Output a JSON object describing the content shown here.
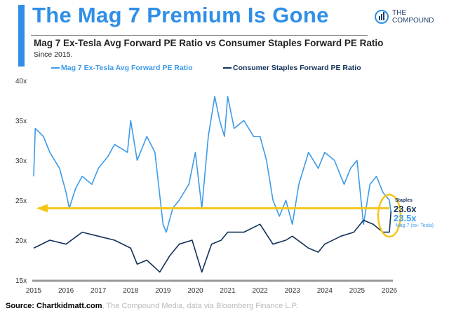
{
  "header": {
    "title": "The Mag 7 Premium Is Gone",
    "subtitle": "Mag 7 Ex-Tesla Avg Forward PE Ratio vs Consumer Staples Forward PE Ratio",
    "since": "Since 2015.",
    "logo_line1": "THE",
    "logo_line2": "COMPOUND"
  },
  "footer": {
    "source_bold": "Source: Chartkidmatt.com",
    "source_rest": ", The Compound Media, data via Bloomberg Finance L.P."
  },
  "annotations": {
    "staples_label": "Staples",
    "staples_value": "23.6x",
    "mag7_value": "23.5x",
    "mag7_label": "Mag 7 (ex- Tesla)"
  },
  "chart_data": {
    "type": "line",
    "ylim": [
      15,
      40
    ],
    "xlim": [
      2015,
      2026.1
    ],
    "yticks": [
      "15x",
      "20x",
      "25x",
      "30x",
      "35x",
      "40x"
    ],
    "xticks": [
      "2015",
      "2016",
      "2017",
      "2018",
      "2019",
      "2020",
      "2021",
      "2022",
      "2023",
      "2024",
      "2025",
      "2026"
    ],
    "grid": false,
    "legend": "top",
    "colors": {
      "mag7": "#3d9be9",
      "staples": "#13325a",
      "highlight": "#f5c518"
    },
    "reference_line": 24,
    "series": [
      {
        "name": "Mag 7 Ex-Tesla Avg Forward PE Ratio",
        "x": [
          2015,
          2015.05,
          2015.3,
          2015.5,
          2015.8,
          2016,
          2016.1,
          2016.3,
          2016.5,
          2016.8,
          2017,
          2017.3,
          2017.5,
          2017.9,
          2018,
          2018.2,
          2018.5,
          2018.75,
          2019,
          2019.1,
          2019.3,
          2019.5,
          2019.8,
          2020,
          2020.2,
          2020.4,
          2020.6,
          2020.75,
          2020.9,
          2021,
          2021.2,
          2021.5,
          2021.8,
          2022,
          2022.2,
          2022.4,
          2022.6,
          2022.8,
          2023,
          2023.2,
          2023.5,
          2023.8,
          2024,
          2024.3,
          2024.6,
          2024.8,
          2025,
          2025.2,
          2025.4,
          2025.6,
          2025.8,
          2026,
          2026.05
        ],
        "y": [
          28,
          34,
          33,
          31,
          29,
          26,
          24,
          26.5,
          28,
          27,
          29,
          30.5,
          32,
          31,
          35,
          30,
          33,
          31,
          22,
          21,
          24,
          25,
          27,
          31,
          24,
          33,
          38,
          35,
          33,
          38,
          34,
          35,
          33,
          33,
          30,
          25,
          23,
          25,
          22,
          27,
          31,
          29,
          31,
          30,
          27,
          29,
          30,
          22,
          27,
          28,
          26,
          25,
          23.5
        ]
      },
      {
        "name": "Consumer Staples Forward PE Ratio",
        "x": [
          2015,
          2015.5,
          2016,
          2016.5,
          2017,
          2017.5,
          2018,
          2018.2,
          2018.5,
          2018.9,
          2019.2,
          2019.5,
          2019.9,
          2020.2,
          2020.5,
          2020.8,
          2021,
          2021.5,
          2022,
          2022.4,
          2022.8,
          2023,
          2023.5,
          2023.8,
          2024,
          2024.5,
          2024.9,
          2025.2,
          2025.5,
          2025.8,
          2026,
          2026.05
        ],
        "y": [
          19,
          20,
          19.5,
          21,
          20.5,
          20,
          19,
          17,
          17.5,
          16,
          18,
          19.5,
          20,
          16,
          19.5,
          20,
          21,
          21,
          22,
          19.5,
          20,
          20.5,
          19,
          18.5,
          19.5,
          20.5,
          21,
          22.5,
          22,
          21,
          21,
          23.6
        ]
      }
    ]
  }
}
